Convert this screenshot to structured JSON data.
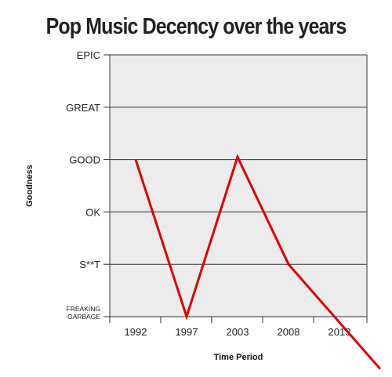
{
  "chart_data": {
    "type": "line",
    "title": "Pop Music Decency over the years",
    "xlabel": "Time Period",
    "ylabel": "Goodness",
    "categories": [
      "1992",
      "1997",
      "2003",
      "2008",
      "2013"
    ],
    "y_levels": [
      "FREAKING GARBAGE",
      "S**T",
      "OK",
      "GOOD",
      "GREAT",
      "EPIC"
    ],
    "ylim": [
      0,
      5
    ],
    "grid": true,
    "series": [
      {
        "x": [
          1992,
          1997,
          2003,
          2008,
          2017
        ],
        "y": [
          3.0,
          0.0,
          3.05,
          1.0,
          -1.0
        ],
        "values": [
          "GOOD",
          "FREAKING GARBAGE",
          "GOOD",
          "S**T",
          "below FREAKING GARBAGE"
        ]
      }
    ],
    "colors": {
      "line": "#e00000",
      "plot_bg": "#ececec",
      "grid": "#333333"
    }
  }
}
